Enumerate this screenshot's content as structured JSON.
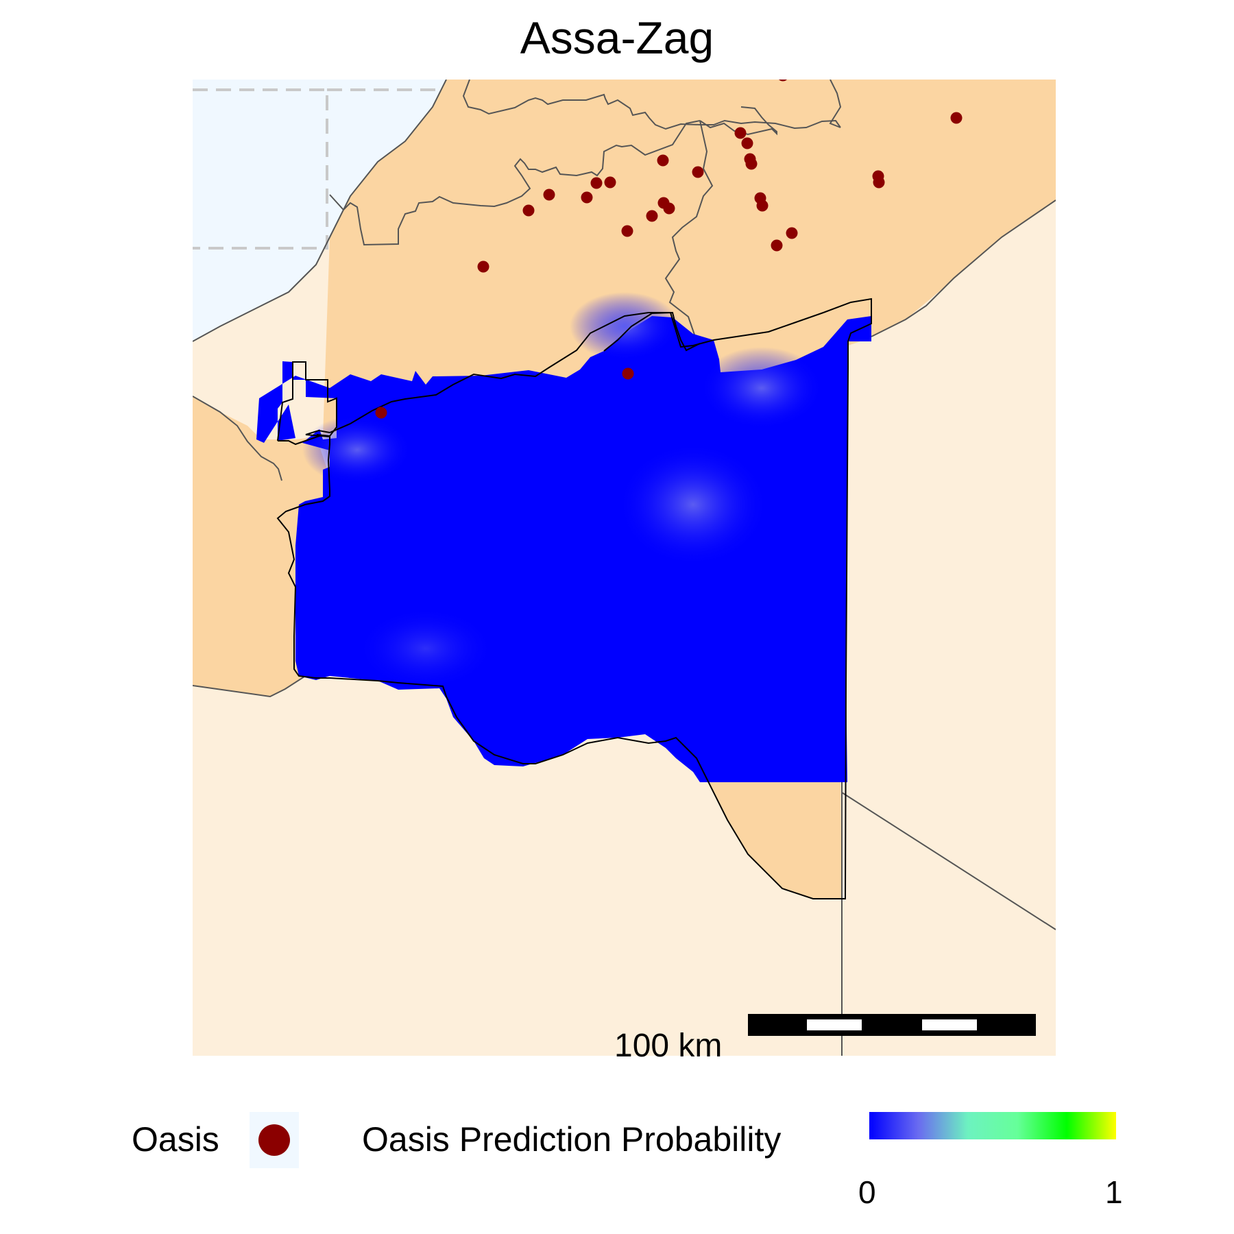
{
  "title": "Assa-Zag",
  "map": {
    "scale_bar_label": "100 km",
    "colors": {
      "sea": "#f0f8ff",
      "region_land": "#fbd5a2",
      "outside_land": "#fdefdb",
      "oasis": "#8b0000",
      "prediction_low": "#0000ff"
    },
    "legend": {
      "oasis_label": "Oasis",
      "probability_label": "Oasis Prediction Probability",
      "probability_min": "0",
      "probability_max": "1",
      "gradient_colors": [
        "#0000ff",
        "#6a6cf0",
        "#6df2c0",
        "#66ff99",
        "#00ff00",
        "#ffff00"
      ]
    }
  }
}
